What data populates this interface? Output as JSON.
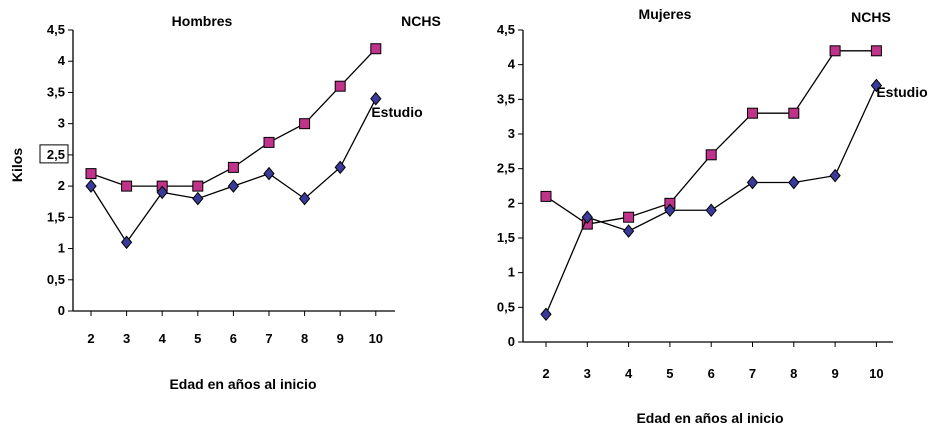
{
  "chart_data": [
    {
      "type": "line",
      "title": "Hombres",
      "xlabel": "Edad en años al  inicio",
      "ylabel": "Kilos",
      "categories": [
        "2",
        "3",
        "4",
        "5",
        "6",
        "7",
        "8",
        "9",
        "10"
      ],
      "ylim": [
        0,
        4.5
      ],
      "yticks": [
        "0",
        "0,5",
        "1",
        "1,5",
        "2",
        "2,5",
        "3",
        "3,5",
        "4",
        "4,5"
      ],
      "highlighted_ytick": "2,5",
      "grid": false,
      "series": [
        {
          "name": "NCHS",
          "marker": "square",
          "color": "#c0338a",
          "values": [
            2.2,
            2.0,
            2.0,
            2.0,
            2.3,
            2.7,
            3.0,
            3.6,
            4.2
          ]
        },
        {
          "name": "Estudio",
          "marker": "diamond",
          "color": "#3a3a9a",
          "values": [
            2.0,
            1.1,
            1.9,
            1.8,
            2.0,
            2.2,
            1.8,
            2.3,
            3.4
          ]
        }
      ]
    },
    {
      "type": "line",
      "title": "Mujeres",
      "xlabel": "Edad en años al  inicio",
      "ylabel": "",
      "categories": [
        "2",
        "3",
        "4",
        "5",
        "6",
        "7",
        "8",
        "9",
        "10"
      ],
      "ylim": [
        0,
        4.5
      ],
      "yticks": [
        "0",
        "0,5",
        "1",
        "1,5",
        "2",
        "2,5",
        "3",
        "3,5",
        "4",
        "4,5"
      ],
      "grid": false,
      "series": [
        {
          "name": "NCHS",
          "marker": "square",
          "color": "#c0338a",
          "values": [
            2.1,
            1.7,
            1.8,
            2.0,
            2.7,
            3.3,
            3.3,
            4.2,
            4.2
          ]
        },
        {
          "name": "Estudio",
          "marker": "diamond",
          "color": "#3a3a9a",
          "values": [
            0.4,
            1.8,
            1.6,
            1.9,
            1.9,
            2.3,
            2.3,
            2.4,
            3.7
          ]
        }
      ]
    }
  ]
}
